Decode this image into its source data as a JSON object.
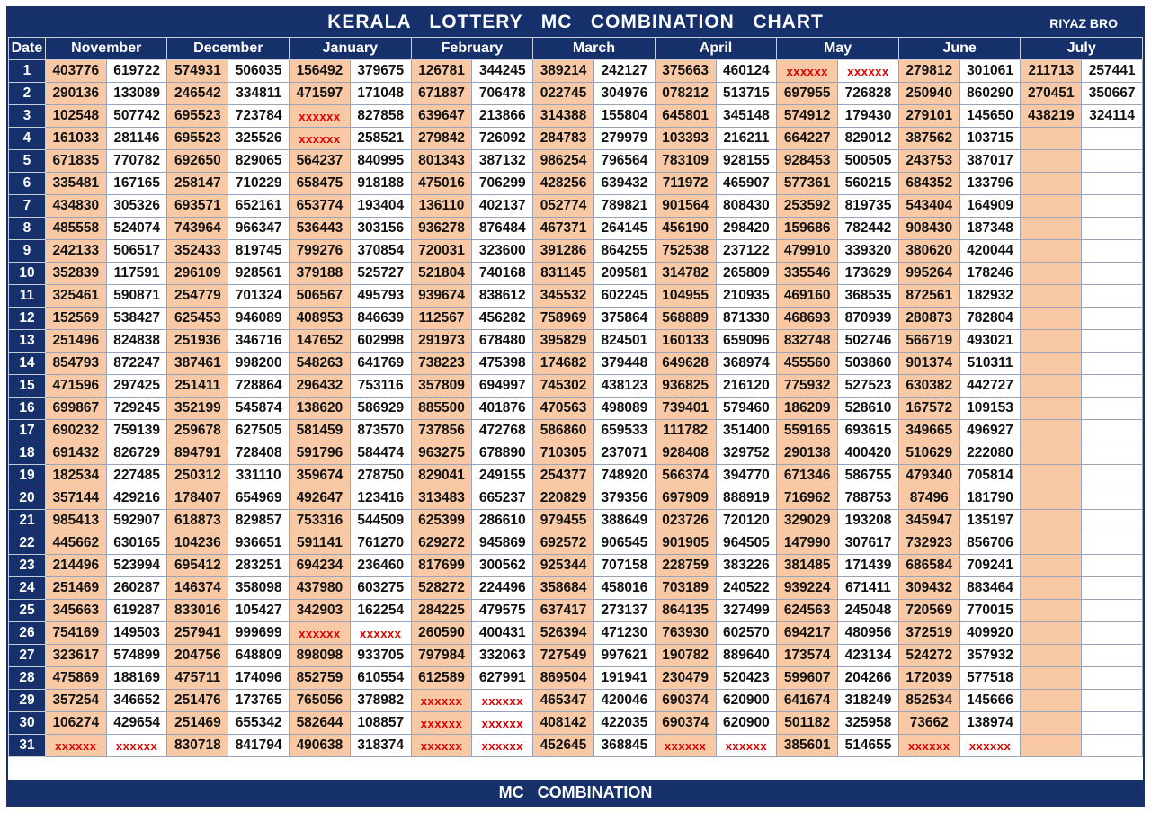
{
  "title": "KERALA   LOTTERY   MC   COMBINATION   CHART",
  "brand": "RIYAZ BRO",
  "date_header": "Date",
  "footer": "MC   COMBINATION",
  "months": [
    "November",
    "December",
    "January",
    "February",
    "March",
    "April",
    "May",
    "June",
    "July"
  ],
  "placeholder": "xxxxxx",
  "colors": {
    "navy": "#15306b",
    "peach": "#f8c9a4",
    "red": "#e00000",
    "divider": "#c0392b"
  },
  "rows": [
    [
      "403776",
      "619722",
      "574931",
      "506035",
      "156492",
      "379675",
      "126781",
      "344245",
      "389214",
      "242127",
      "375663",
      "460124",
      "xxxxxx",
      "xxxxxx",
      "279812",
      "301061",
      "211713",
      "257441"
    ],
    [
      "290136",
      "133089",
      "246542",
      "334811",
      "471597",
      "171048",
      "671887",
      "706478",
      "022745",
      "304976",
      "078212",
      "513715",
      "697955",
      "726828",
      "250940",
      "860290",
      "270451",
      "350667"
    ],
    [
      "102548",
      "507742",
      "695523",
      "723784",
      "xxxxxx",
      "827858",
      "639647",
      "213866",
      "314388",
      "155804",
      "645801",
      "345148",
      "574912",
      "179430",
      "279101",
      "145650",
      "438219",
      "324114"
    ],
    [
      "161033",
      "281146",
      "695523",
      "325526",
      "xxxxxx",
      "258521",
      "279842",
      "726092",
      "284783",
      "279979",
      "103393",
      "216211",
      "664227",
      "829012",
      "387562",
      "103715",
      "",
      ""
    ],
    [
      "671835",
      "770782",
      "692650",
      "829065",
      "564237",
      "840995",
      "801343",
      "387132",
      "986254",
      "796564",
      "783109",
      "928155",
      "928453",
      "500505",
      "243753",
      "387017",
      "",
      ""
    ],
    [
      "335481",
      "167165",
      "258147",
      "710229",
      "658475",
      "918188",
      "475016",
      "706299",
      "428256",
      "639432",
      "711972",
      "465907",
      "577361",
      "560215",
      "684352",
      "133796",
      "",
      ""
    ],
    [
      "434830",
      "305326",
      "693571",
      "652161",
      "653774",
      "193404",
      "136110",
      "402137",
      "052774",
      "789821",
      "901564",
      "808430",
      "253592",
      "819735",
      "543404",
      "164909",
      "",
      ""
    ],
    [
      "485558",
      "524074",
      "743964",
      "966347",
      "536443",
      "303156",
      "936278",
      "876484",
      "467371",
      "264145",
      "456190",
      "298420",
      "159686",
      "782442",
      "908430",
      "187348",
      "",
      ""
    ],
    [
      "242133",
      "506517",
      "352433",
      "819745",
      "799276",
      "370854",
      "720031",
      "323600",
      "391286",
      "864255",
      "752538",
      "237122",
      "479910",
      "339320",
      "380620",
      "420044",
      "",
      ""
    ],
    [
      "352839",
      "117591",
      "296109",
      "928561",
      "379188",
      "525727",
      "521804",
      "740168",
      "831145",
      "209581",
      "314782",
      "265809",
      "335546",
      "173629",
      "995264",
      "178246",
      "",
      ""
    ],
    [
      "325461",
      "590871",
      "254779",
      "701324",
      "506567",
      "495793",
      "939674",
      "838612",
      "345532",
      "602245",
      "104955",
      "210935",
      "469160",
      "368535",
      "872561",
      "182932",
      "",
      ""
    ],
    [
      "152569",
      "538427",
      "625453",
      "946089",
      "408953",
      "846639",
      "112567",
      "456282",
      "758969",
      "375864",
      "568889",
      "871330",
      "468693",
      "870939",
      "280873",
      "782804",
      "",
      ""
    ],
    [
      "251496",
      "824838",
      "251936",
      "346716",
      "147652",
      "602998",
      "291973",
      "678480",
      "395829",
      "824501",
      "160133",
      "659096",
      "832748",
      "502746",
      "566719",
      "493021",
      "",
      ""
    ],
    [
      "854793",
      "872247",
      "387461",
      "998200",
      "548263",
      "641769",
      "738223",
      "475398",
      "174682",
      "379448",
      "649628",
      "368974",
      "455560",
      "503860",
      "901374",
      "510311",
      "",
      ""
    ],
    [
      "471596",
      "297425",
      "251411",
      "728864",
      "296432",
      "753116",
      "357809",
      "694997",
      "745302",
      "438123",
      "936825",
      "216120",
      "775932",
      "527523",
      "630382",
      "442727",
      "",
      ""
    ],
    [
      "699867",
      "729245",
      "352199",
      "545874",
      "138620",
      "586929",
      "885500",
      "401876",
      "470563",
      "498089",
      "739401",
      "579460",
      "186209",
      "528610",
      "167572",
      "109153",
      "",
      ""
    ],
    [
      "690232",
      "759139",
      "259678",
      "627505",
      "581459",
      "873570",
      "737856",
      "472768",
      "586860",
      "659533",
      "111782",
      "351400",
      "559165",
      "693615",
      "349665",
      "496927",
      "",
      ""
    ],
    [
      "691432",
      "826729",
      "894791",
      "728408",
      "591796",
      "584474",
      "963275",
      "678890",
      "710305",
      "237071",
      "928408",
      "329752",
      "290138",
      "400420",
      "510629",
      "222080",
      "",
      ""
    ],
    [
      "182534",
      "227485",
      "250312",
      "331110",
      "359674",
      "278750",
      "829041",
      "249155",
      "254377",
      "748920",
      "566374",
      "394770",
      "671346",
      "586755",
      "479340",
      "705814",
      "",
      ""
    ],
    [
      "357144",
      "429216",
      "178407",
      "654969",
      "492647",
      "123416",
      "313483",
      "665237",
      "220829",
      "379356",
      "697909",
      "888919",
      "716962",
      "788753",
      "87496",
      "181790",
      "",
      ""
    ],
    [
      "985413",
      "592907",
      "618873",
      "829857",
      "753316",
      "544509",
      "625399",
      "286610",
      "979455",
      "388649",
      "023726",
      "720120",
      "329029",
      "193208",
      "345947",
      "135197",
      "",
      ""
    ],
    [
      "445662",
      "630165",
      "104236",
      "936651",
      "591141",
      "761270",
      "629272",
      "945869",
      "692572",
      "906545",
      "901905",
      "964505",
      "147990",
      "307617",
      "732923",
      "856706",
      "",
      ""
    ],
    [
      "214496",
      "523994",
      "695412",
      "283251",
      "694234",
      "236460",
      "817699",
      "300562",
      "925344",
      "707158",
      "228759",
      "383226",
      "381485",
      "171439",
      "686584",
      "709241",
      "",
      ""
    ],
    [
      "251469",
      "260287",
      "146374",
      "358098",
      "437980",
      "603275",
      "528272",
      "224496",
      "358684",
      "458016",
      "703189",
      "240522",
      "939224",
      "671411",
      "309432",
      "883464",
      "",
      ""
    ],
    [
      "345663",
      "619287",
      "833016",
      "105427",
      "342903",
      "162254",
      "284225",
      "479575",
      "637417",
      "273137",
      "864135",
      "327499",
      "624563",
      "245048",
      "720569",
      "770015",
      "",
      ""
    ],
    [
      "754169",
      "149503",
      "257941",
      "999699",
      "xxxxxx",
      "xxxxxx",
      "260590",
      "400431",
      "526394",
      "471230",
      "763930",
      "602570",
      "694217",
      "480956",
      "372519",
      "409920",
      "",
      ""
    ],
    [
      "323617",
      "574899",
      "204756",
      "648809",
      "898098",
      "933705",
      "797984",
      "332063",
      "727549",
      "997621",
      "190782",
      "889640",
      "173574",
      "423134",
      "524272",
      "357932",
      "",
      ""
    ],
    [
      "475869",
      "188169",
      "475711",
      "174096",
      "852759",
      "610554",
      "612589",
      "627991",
      "869504",
      "191941",
      "230479",
      "520423",
      "599607",
      "204266",
      "172039",
      "577518",
      "",
      ""
    ],
    [
      "357254",
      "346652",
      "251476",
      "173765",
      "765056",
      "378982",
      "xxxxxx",
      "xxxxxx",
      "465347",
      "420046",
      "690374",
      "620900",
      "641674",
      "318249",
      "852534",
      "145666",
      "",
      ""
    ],
    [
      "106274",
      "429654",
      "251469",
      "655342",
      "582644",
      "108857",
      "xxxxxx",
      "xxxxxx",
      "408142",
      "422035",
      "690374",
      "620900",
      "501182",
      "325958",
      "73662",
      "138974",
      "",
      ""
    ],
    [
      "xxxxxx",
      "xxxxxx",
      "830718",
      "841794",
      "490638",
      "318374",
      "xxxxxx",
      "xxxxxx",
      "452645",
      "368845",
      "xxxxxx",
      "xxxxxx",
      "385601",
      "514655",
      "xxxxxx",
      "xxxxxx",
      "",
      ""
    ]
  ]
}
